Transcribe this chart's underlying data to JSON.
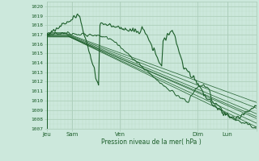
{
  "xlabel": "Pression niveau de la mer( hPa )",
  "ylim": [
    1007,
    1020.5
  ],
  "yticks": [
    1007,
    1008,
    1009,
    1010,
    1011,
    1012,
    1013,
    1014,
    1015,
    1016,
    1017,
    1018,
    1019,
    1020
  ],
  "x_ticks_pos": [
    0.0,
    0.12,
    0.35,
    0.72,
    0.86,
    1.0
  ],
  "x_ticks_labels": [
    "Jeu",
    "Sam",
    "Ven",
    "Dim",
    "Lun",
    ""
  ],
  "background_color": "#cce8dc",
  "grid_major_color": "#aaccb8",
  "grid_minor_color": "#bbddc8",
  "line_color": "#1a5c28",
  "figsize": [
    3.2,
    2.0
  ],
  "dpi": 100
}
